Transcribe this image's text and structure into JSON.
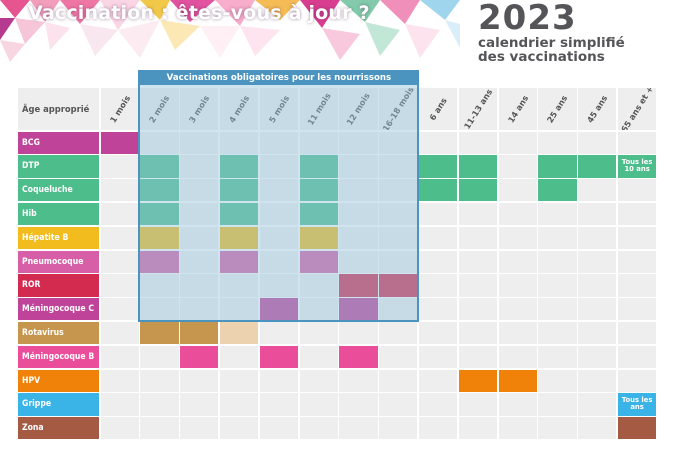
{
  "header": {
    "title": "Vaccination : êtes-vous à jour ?",
    "year": "2023",
    "subtitle_line1": "calendrier simplifié",
    "subtitle_line2": "des vaccinations"
  },
  "table": {
    "age_header": "Âge approprié",
    "mandatory_banner": "Vaccinations obligatoires pour les nourrissons",
    "columns": [
      "1 mois",
      "2 mois",
      "3 mois",
      "4 mois",
      "5 mois",
      "11 mois",
      "12 mois",
      "16-18 mois",
      "6 ans",
      "11-13 ans",
      "14 ans",
      "25 ans",
      "45 ans",
      "65 ans et +"
    ],
    "rows": [
      {
        "label": "BCG",
        "color": "#c0439a",
        "cells": [
          0
        ]
      },
      {
        "label": "DTP",
        "color": "#4dbd8c",
        "cells": [
          1,
          3,
          5,
          8,
          9,
          11,
          12,
          13
        ]
      },
      {
        "label": "Coqueluche",
        "color": "#4dbd8c",
        "cells": [
          1,
          3,
          5,
          8,
          9,
          11
        ]
      },
      {
        "label": "Hib",
        "color": "#4dbd8c",
        "cells": [
          1,
          3,
          5
        ]
      },
      {
        "label": "Hépatite B",
        "color": "#f2bc1e",
        "cells": [
          1,
          3,
          5
        ]
      },
      {
        "label": "Pneumocoque",
        "color": "#d75fa7",
        "cells": [
          1,
          3,
          5
        ]
      },
      {
        "label": "ROR",
        "color": "#d32a4f",
        "cells": [
          6,
          7
        ]
      },
      {
        "label": "Méningocoque C",
        "color": "#c0439a",
        "cells": [
          4,
          6
        ]
      },
      {
        "label": "Rotavirus",
        "color": "#c7964e",
        "cells": [
          1,
          2,
          3
        ]
      },
      {
        "label": "Méningocoque B",
        "color": "#ea4e9b",
        "cells": [
          2,
          4,
          6
        ]
      },
      {
        "label": "HPV",
        "color": "#f0820a",
        "cells": [
          9,
          10
        ]
      },
      {
        "label": "Grippe",
        "color": "#3ab3e6",
        "cells": [
          13
        ]
      },
      {
        "label": "Zona",
        "color": "#a55a44",
        "cells": [
          13
        ]
      }
    ],
    "notes": {
      "dtp_65": "Tous les 10 ans",
      "grippe_65": "Tous les ans"
    },
    "light_cells": [
      {
        "row": 8,
        "col": 3,
        "color": "#ecd2ae"
      }
    ]
  }
}
